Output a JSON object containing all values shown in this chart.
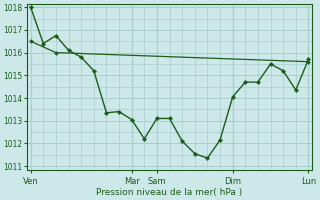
{
  "bg_color": "#cce8e8",
  "grid_color": "#aacece",
  "line_color": "#1a5c1a",
  "xlabel": "Pression niveau de la mer( hPa )",
  "ylim": [
    1011,
    1018
  ],
  "yticks": [
    1011,
    1012,
    1013,
    1014,
    1015,
    1016,
    1017,
    1018
  ],
  "xtick_labels": [
    "Ven",
    "Mar",
    "Sam",
    "Dim",
    "Lun"
  ],
  "xtick_positions": [
    0,
    8,
    10,
    16,
    22
  ],
  "total_points": 23,
  "line1_x": [
    0,
    1,
    2,
    3,
    4,
    5,
    6,
    7,
    8,
    9,
    10,
    11,
    12,
    13,
    14,
    15,
    16,
    17,
    18,
    19,
    20,
    21,
    22
  ],
  "line1_y": [
    1018.0,
    1016.4,
    1016.75,
    1016.1,
    1015.8,
    1015.2,
    1013.35,
    1013.4,
    1013.05,
    1012.2,
    1013.1,
    1013.1,
    1012.1,
    1011.55,
    1011.35,
    1012.15,
    1014.05,
    1014.7,
    1014.7,
    1015.5,
    1015.2,
    1014.35,
    1015.7
  ],
  "line2_x": [
    0,
    2,
    22
  ],
  "line2_y": [
    1016.5,
    1016.0,
    1015.6
  ]
}
